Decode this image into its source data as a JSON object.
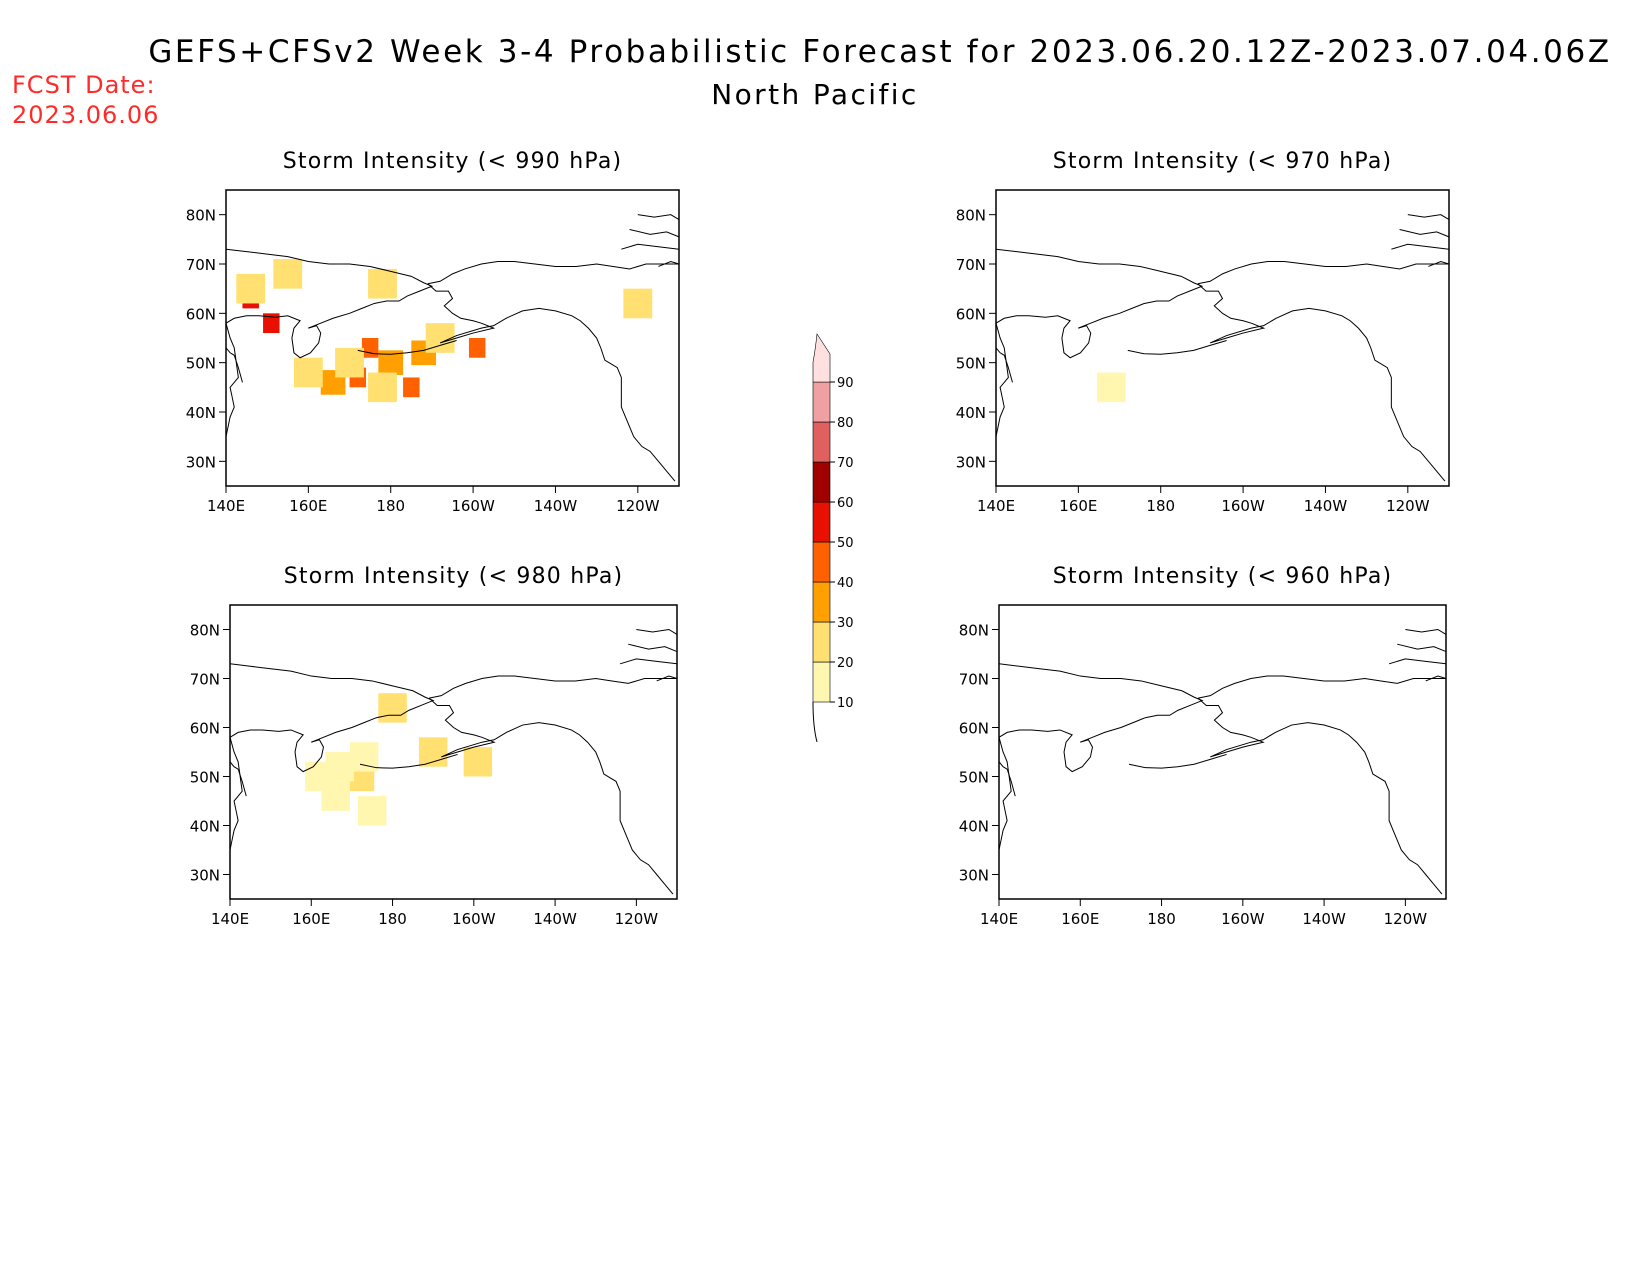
{
  "header": {
    "title": "GEFS+CFSv2 Week 3-4 Probabilistic Forecast for 2023.06.20.12Z-2023.07.04.06Z",
    "subtitle": "North Pacific",
    "fcst_label": "FCST Date:",
    "fcst_date": "2023.06.06",
    "fcst_color": "#ff2a2a"
  },
  "axis": {
    "lon_ticks": [
      "140E",
      "160E",
      "180",
      "160W",
      "140W",
      "120W"
    ],
    "lat_ticks": [
      "80N",
      "70N",
      "60N",
      "50N",
      "40N",
      "30N"
    ]
  },
  "panels": [
    {
      "id": "p990",
      "title": "Storm Intensity (< 990 hPa)"
    },
    {
      "id": "p970",
      "title": "Storm Intensity (< 970 hPa)"
    },
    {
      "id": "p980",
      "title": "Storm Intensity (< 980 hPa)"
    },
    {
      "id": "p960",
      "title": "Storm Intensity (< 960 hPa)"
    }
  ],
  "colorbar": {
    "levels": [
      "10",
      "20",
      "30",
      "40",
      "50",
      "60",
      "70",
      "80",
      "90"
    ],
    "colors": [
      "#fff7b0",
      "#ffe070",
      "#ffa000",
      "#ff6000",
      "#e81000",
      "#a00000",
      "#e06060",
      "#f0a0a0",
      "#ffe0e0"
    ]
  },
  "chart_data": {
    "type": "heatmap",
    "units": "%",
    "lon_range": [
      140,
      250
    ],
    "lat_range": [
      25,
      85
    ],
    "panels": [
      {
        "id": "p990",
        "cells": [
          {
            "lon": 146,
            "lat": 63,
            "level": 50
          },
          {
            "lon": 151,
            "lat": 58,
            "level": 50
          },
          {
            "lon": 146,
            "lat": 65,
            "level": 20
          },
          {
            "lon": 175,
            "lat": 53,
            "level": 40
          },
          {
            "lon": 172,
            "lat": 47,
            "level": 40
          },
          {
            "lon": 185,
            "lat": 45,
            "level": 40
          },
          {
            "lon": 166,
            "lat": 46,
            "level": 30
          },
          {
            "lon": 201,
            "lat": 53,
            "level": 40
          },
          {
            "lon": 180,
            "lat": 50,
            "level": 30
          },
          {
            "lon": 188,
            "lat": 52,
            "level": 30
          },
          {
            "lon": 170,
            "lat": 50,
            "level": 20
          },
          {
            "lon": 178,
            "lat": 45,
            "level": 20
          },
          {
            "lon": 192,
            "lat": 55,
            "level": 20
          },
          {
            "lon": 160,
            "lat": 48,
            "level": 20
          },
          {
            "lon": 155,
            "lat": 68,
            "level": 20
          },
          {
            "lon": 178,
            "lat": 66,
            "level": 20
          },
          {
            "lon": 240,
            "lat": 62,
            "level": 20
          }
        ]
      },
      {
        "id": "p970",
        "cells": [
          {
            "lon": 168,
            "lat": 45,
            "level": 10
          }
        ]
      },
      {
        "id": "p980",
        "cells": [
          {
            "lon": 180,
            "lat": 64,
            "level": 20
          },
          {
            "lon": 190,
            "lat": 55,
            "level": 20
          },
          {
            "lon": 201,
            "lat": 53,
            "level": 20
          },
          {
            "lon": 172,
            "lat": 50,
            "level": 20
          },
          {
            "lon": 162,
            "lat": 50,
            "level": 10
          },
          {
            "lon": 167,
            "lat": 52,
            "level": 10
          },
          {
            "lon": 175,
            "lat": 43,
            "level": 10
          },
          {
            "lon": 166,
            "lat": 46,
            "level": 10
          },
          {
            "lon": 173,
            "lat": 54,
            "level": 10
          }
        ]
      },
      {
        "id": "p960",
        "cells": []
      }
    ]
  }
}
